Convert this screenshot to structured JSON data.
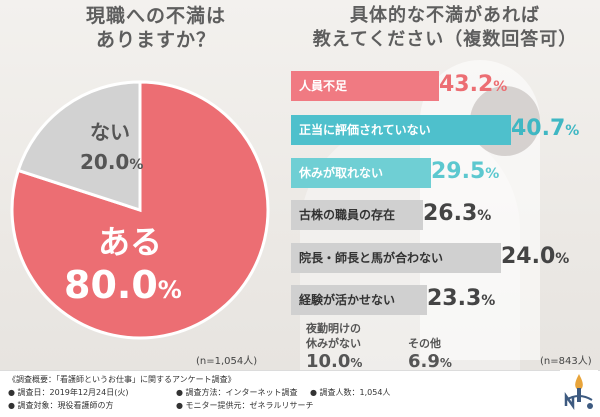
{
  "left_title": {
    "line1": "現職への不満は",
    "line2": "ありますか？"
  },
  "right_title": {
    "line1": "具体的な不満があれば",
    "line2": "教えてください（複数回答可）"
  },
  "chart_data": [
    {
      "type": "pie",
      "categories": [
        "ある",
        "ない"
      ],
      "values": [
        80.0,
        20.0
      ],
      "value_labels": [
        "80.0%",
        "20.0%"
      ],
      "colors": [
        "#ec6e73",
        "#d2d2d2"
      ],
      "n": "(n=1,054人)"
    },
    {
      "type": "bar",
      "categories": [
        "人員不足",
        "正当に評価されていない",
        "休みが取れない",
        "古株の職員の存在",
        "院長・師長と馬が合わない",
        "経験が活かせない",
        "夜勤明けの休みがない",
        "その他"
      ],
      "values": [
        43.2,
        40.7,
        29.5,
        26.3,
        24.0,
        23.3,
        10.0,
        6.9
      ],
      "colors": [
        "#f07a82",
        "#4ec0cc",
        "#6fcfd4",
        "#c8c8c8",
        "#c8c8c8",
        "#c8c8c8",
        null,
        null
      ],
      "n": "(n=843人)"
    }
  ],
  "pie_labels": {
    "yes_label": "ある",
    "yes_value": "80.0",
    "yes_pct": "%",
    "no_label": "ない",
    "no_value": "20.0",
    "no_pct": "%"
  },
  "bars": [
    {
      "label": "人員不足",
      "value": "43.2",
      "pct": "%",
      "bg": "#f07a82",
      "fg": "#ffffff",
      "vcolor": "#ec6e73"
    },
    {
      "label": "正当に評価されていない",
      "value": "40.7",
      "pct": "%",
      "bg": "#4ec0cc",
      "fg": "#ffffff",
      "vcolor": "#3fb7c3"
    },
    {
      "label": "休みが取れない",
      "value": "29.5",
      "pct": "%",
      "bg": "#6fcfd4",
      "fg": "#ffffff",
      "vcolor": "#5cc8cf"
    },
    {
      "label": "古株の職員の存在",
      "value": "26.3",
      "pct": "%",
      "bg": "#d0d0d0",
      "fg": "#333333",
      "vcolor": "#444444"
    },
    {
      "label": "院長・師長と馬が合わない",
      "value": "24.0",
      "pct": "%",
      "bg": "#d0d0d0",
      "fg": "#333333",
      "vcolor": "#444444"
    },
    {
      "label": "経験が活かせない",
      "value": "23.3",
      "pct": "%",
      "bg": "#d0d0d0",
      "fg": "#333333",
      "vcolor": "#444444"
    }
  ],
  "small_items": [
    {
      "label1": "夜勤明けの",
      "label2": "休みがない",
      "value": "10.0",
      "pct": "%"
    },
    {
      "label1": "その他",
      "label2": "",
      "value": "6.9",
      "pct": "%"
    }
  ],
  "n_left": "(n=1,054人)",
  "n_right": "(n=843人)",
  "footer": {
    "overview": "《調査概要：「看護師というお仕事」に関するアンケート調査》",
    "date": "● 調査日：2019年12月24日(火)",
    "method": "● 調査方法：インターネット調査",
    "people": "● 調査人数：1,054人",
    "target": "● 調査対象：現役看護師の方",
    "monitor": "● モニター提供元：ゼネラルリサーチ"
  }
}
